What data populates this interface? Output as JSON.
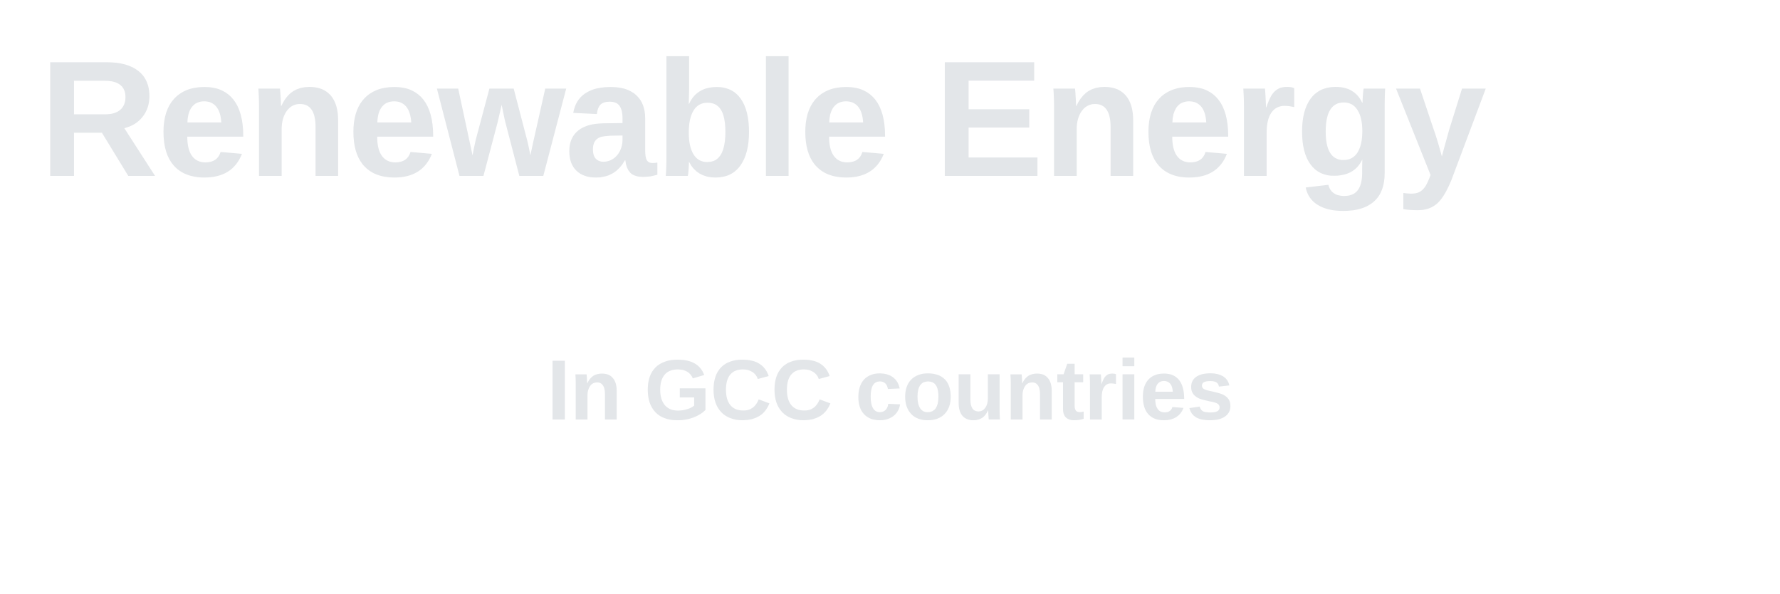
{
  "title": "Renewable Energy",
  "subtitle": "In GCC countries",
  "colors": {
    "background": "#ffffff",
    "text": "#e3e6e9"
  }
}
